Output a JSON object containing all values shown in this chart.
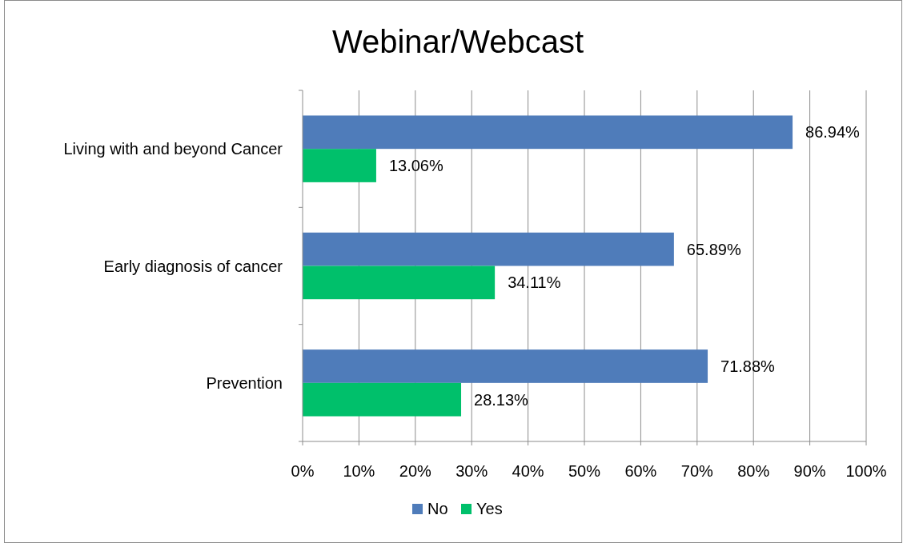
{
  "chart_data": {
    "type": "bar",
    "title": "Webinar/Webcast",
    "orientation": "horizontal",
    "categories": [
      "Living with and beyond Cancer",
      "Early diagnosis of cancer",
      "Prevention"
    ],
    "series": [
      {
        "name": "No",
        "color": "#4f7cba",
        "values": [
          86.94,
          65.89,
          71.88
        ],
        "value_labels": [
          "86.94%",
          "65.89%",
          "71.88%"
        ]
      },
      {
        "name": "Yes",
        "color": "#00c06b",
        "values": [
          13.06,
          34.11,
          28.13
        ],
        "value_labels": [
          "13.06%",
          "34.11%",
          "28.13%"
        ]
      }
    ],
    "xlim": [
      0,
      100
    ],
    "xticks": [
      {
        "value": 0,
        "label": "0%"
      },
      {
        "value": 10,
        "label": "10%"
      },
      {
        "value": 20,
        "label": "20%"
      },
      {
        "value": 30,
        "label": "30%"
      },
      {
        "value": 40,
        "label": "40%"
      },
      {
        "value": 50,
        "label": "50%"
      },
      {
        "value": 60,
        "label": "60%"
      },
      {
        "value": 70,
        "label": "70%"
      },
      {
        "value": 80,
        "label": "80%"
      },
      {
        "value": 90,
        "label": "90%"
      },
      {
        "value": 100,
        "label": "100%"
      }
    ],
    "grid": "x",
    "legend": "bottom"
  }
}
